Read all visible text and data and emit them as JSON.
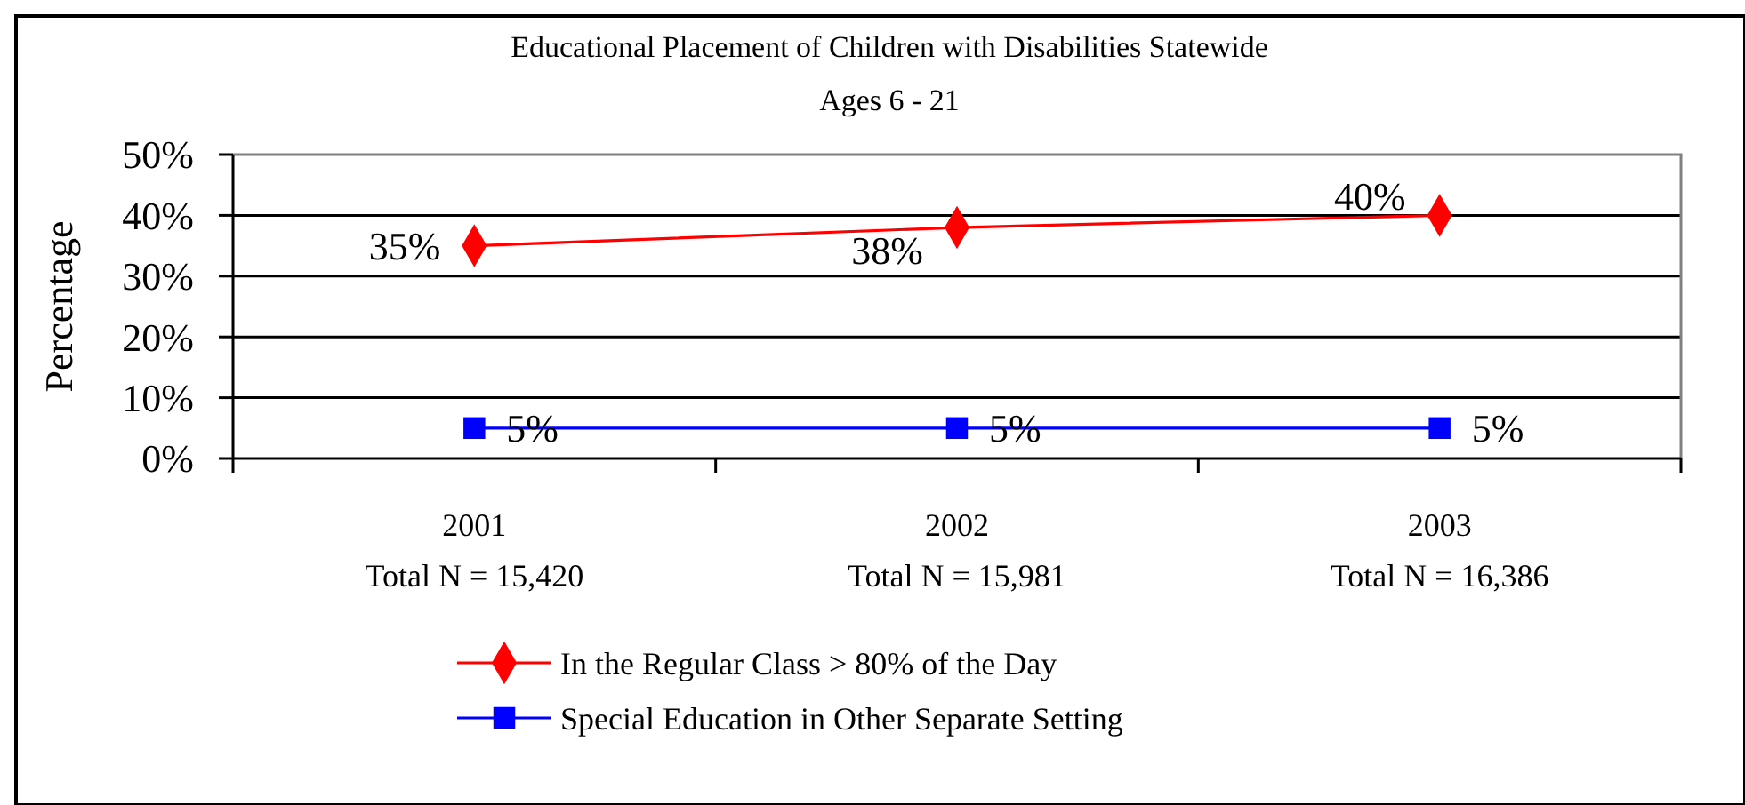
{
  "chart_data": {
    "type": "line",
    "title": "Educational Placement of Children with Disabilities Statewide",
    "subtitle": "Ages 6 - 21",
    "ylabel": "Percentage",
    "categories": [
      "2001\nTotal N = 15,420",
      "2002\nTotal N = 15,981",
      "2003\nTotal N = 16,386"
    ],
    "series": [
      {
        "name": "In the Regular Class > 80% of the Day",
        "color": "#ff0000",
        "marker": "diamond",
        "values": [
          35,
          38,
          40
        ],
        "value_labels": [
          "35%",
          "38%",
          "40%"
        ]
      },
      {
        "name": "Special Education in Other Separate Setting",
        "color": "#0000ff",
        "marker": "square",
        "values": [
          5,
          5,
          5
        ],
        "value_labels": [
          "5%",
          "5%",
          "5%"
        ]
      }
    ],
    "ylim": [
      0,
      50
    ],
    "yticks": [
      {
        "value": 0,
        "label": "0%"
      },
      {
        "value": 10,
        "label": "10%"
      },
      {
        "value": 20,
        "label": "20%"
      },
      {
        "value": 30,
        "label": "30%"
      },
      {
        "value": 40,
        "label": "40%"
      },
      {
        "value": 50,
        "label": "50%"
      }
    ],
    "grid": "y",
    "legend": "bottom",
    "line_style": "solid"
  }
}
